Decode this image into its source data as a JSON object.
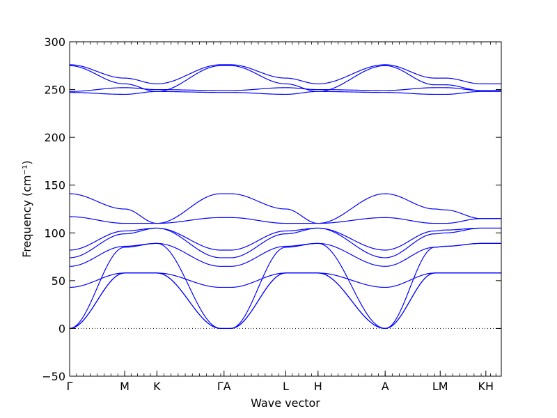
{
  "chart_data": {
    "type": "line",
    "xlabel": "Wave vector",
    "ylabel": "Frequency (cm⁻¹)",
    "ylim": [
      -50,
      300
    ],
    "yticks": [
      -50,
      0,
      50,
      100,
      150,
      200,
      250,
      300
    ],
    "x_range": [
      0,
      6.43
    ],
    "high_symmetry_points": [
      {
        "label": "Γ",
        "x": 0
      },
      {
        "label": "M",
        "x": 0.82
      },
      {
        "label": "K",
        "x": 1.3
      },
      {
        "label": "ΓA",
        "x": 2.3
      },
      {
        "label": "L",
        "x": 3.22
      },
      {
        "label": "H",
        "x": 3.7
      },
      {
        "label": "A",
        "x": 4.7
      },
      {
        "label": "LM",
        "x": 5.52
      },
      {
        "label": "KH",
        "x": 6.2
      }
    ],
    "segments": [
      {
        "path": "Γ-M",
        "x": [
          0,
          0.82
        ]
      },
      {
        "path": "M-K",
        "x": [
          0.82,
          1.3
        ]
      },
      {
        "path": "K-Γ",
        "x": [
          1.3,
          2.25
        ]
      },
      {
        "path": "A-L",
        "x": [
          2.4,
          3.22
        ]
      },
      {
        "path": "L-H",
        "x": [
          3.22,
          3.7
        ]
      },
      {
        "path": "H-A",
        "x": [
          3.7,
          4.7
        ]
      },
      {
        "path": "A-L",
        "x": [
          4.7,
          5.44
        ]
      },
      {
        "path": "M-K",
        "x": [
          5.6,
          6.13
        ]
      },
      {
        "path": "H",
        "x": [
          6.27,
          6.43
        ]
      }
    ],
    "series": [
      {
        "values": [
          [
            0,
            0
          ],
          [
            0.82,
            58
          ],
          [
            1.3,
            58
          ],
          [
            2.25,
            0
          ],
          [
            2.4,
            0
          ],
          [
            3.22,
            58
          ],
          [
            3.7,
            58
          ],
          [
            4.7,
            0
          ],
          [
            5.44,
            58
          ],
          [
            5.6,
            58
          ],
          [
            6.13,
            58
          ],
          [
            6.27,
            58
          ],
          [
            6.43,
            58
          ]
        ]
      },
      {
        "values": [
          [
            0,
            0
          ],
          [
            0.82,
            58
          ],
          [
            1.3,
            58
          ],
          [
            2.25,
            0
          ],
          [
            2.4,
            0
          ],
          [
            3.22,
            58
          ],
          [
            3.7,
            58
          ],
          [
            4.7,
            0
          ],
          [
            5.44,
            58
          ],
          [
            5.6,
            58
          ],
          [
            6.13,
            58
          ],
          [
            6.27,
            58
          ],
          [
            6.43,
            58
          ]
        ]
      },
      {
        "values": [
          [
            0,
            0
          ],
          [
            0.82,
            85
          ],
          [
            1.3,
            89
          ],
          [
            2.25,
            0
          ],
          [
            2.4,
            0
          ],
          [
            3.22,
            85
          ],
          [
            3.7,
            89
          ],
          [
            4.7,
            0
          ],
          [
            5.44,
            85
          ],
          [
            5.6,
            86
          ],
          [
            6.13,
            89
          ],
          [
            6.27,
            89
          ],
          [
            6.43,
            89
          ]
        ]
      },
      {
        "values": [
          [
            0,
            43
          ],
          [
            0.82,
            58
          ],
          [
            1.3,
            58
          ],
          [
            2.25,
            43
          ],
          [
            2.4,
            43
          ],
          [
            3.22,
            58
          ],
          [
            3.7,
            58
          ],
          [
            4.7,
            43
          ],
          [
            5.44,
            58
          ],
          [
            5.6,
            58
          ],
          [
            6.13,
            58
          ],
          [
            6.27,
            58
          ],
          [
            6.43,
            58
          ]
        ]
      },
      {
        "values": [
          [
            0,
            65
          ],
          [
            0.82,
            86
          ],
          [
            1.3,
            89
          ],
          [
            2.25,
            65
          ],
          [
            2.4,
            65
          ],
          [
            3.22,
            86
          ],
          [
            3.7,
            89
          ],
          [
            4.7,
            65
          ],
          [
            5.44,
            85
          ],
          [
            5.6,
            86
          ],
          [
            6.13,
            89
          ],
          [
            6.27,
            89
          ],
          [
            6.43,
            89
          ]
        ]
      },
      {
        "values": [
          [
            0,
            74
          ],
          [
            0.82,
            99
          ],
          [
            1.3,
            105
          ],
          [
            2.25,
            74
          ],
          [
            2.4,
            74
          ],
          [
            3.22,
            99
          ],
          [
            3.7,
            105
          ],
          [
            4.7,
            74
          ],
          [
            5.44,
            99
          ],
          [
            5.6,
            100
          ],
          [
            6.13,
            105
          ],
          [
            6.27,
            105
          ],
          [
            6.43,
            105
          ]
        ]
      },
      {
        "values": [
          [
            0,
            82
          ],
          [
            0.82,
            102
          ],
          [
            1.3,
            105
          ],
          [
            2.25,
            82
          ],
          [
            2.4,
            82
          ],
          [
            3.22,
            102
          ],
          [
            3.7,
            105
          ],
          [
            4.7,
            82
          ],
          [
            5.44,
            102
          ],
          [
            5.6,
            103
          ],
          [
            6.13,
            105
          ],
          [
            6.27,
            105
          ],
          [
            6.43,
            105
          ]
        ]
      },
      {
        "values": [
          [
            0,
            117
          ],
          [
            0.82,
            110
          ],
          [
            1.3,
            110
          ],
          [
            2.25,
            116
          ],
          [
            2.4,
            116
          ],
          [
            3.22,
            110
          ],
          [
            3.7,
            110
          ],
          [
            4.7,
            116
          ],
          [
            5.44,
            110
          ],
          [
            5.6,
            110
          ],
          [
            6.13,
            115
          ],
          [
            6.27,
            115
          ],
          [
            6.43,
            115
          ]
        ]
      },
      {
        "values": [
          [
            0,
            141
          ],
          [
            0.82,
            125
          ],
          [
            1.3,
            110
          ],
          [
            2.25,
            141
          ],
          [
            2.4,
            141
          ],
          [
            3.22,
            125
          ],
          [
            3.7,
            110
          ],
          [
            4.7,
            141
          ],
          [
            5.44,
            125
          ],
          [
            5.6,
            124
          ],
          [
            6.13,
            115
          ],
          [
            6.27,
            115
          ],
          [
            6.43,
            115
          ]
        ]
      },
      {
        "values": [
          [
            0,
            247
          ],
          [
            0.82,
            245
          ],
          [
            1.3,
            248
          ],
          [
            2.25,
            247
          ],
          [
            2.4,
            247
          ],
          [
            3.22,
            245
          ],
          [
            3.7,
            248
          ],
          [
            4.7,
            247
          ],
          [
            5.44,
            245
          ],
          [
            5.6,
            245
          ],
          [
            6.13,
            248
          ],
          [
            6.27,
            248
          ],
          [
            6.43,
            248
          ]
        ]
      },
      {
        "values": [
          [
            0,
            248
          ],
          [
            0.82,
            252
          ],
          [
            1.3,
            250
          ],
          [
            2.25,
            249
          ],
          [
            2.4,
            249
          ],
          [
            3.22,
            252
          ],
          [
            3.7,
            250
          ],
          [
            4.7,
            249
          ],
          [
            5.44,
            252
          ],
          [
            5.6,
            252
          ],
          [
            6.13,
            249
          ],
          [
            6.27,
            249
          ],
          [
            6.43,
            249
          ]
        ]
      },
      {
        "values": [
          [
            0,
            275
          ],
          [
            0.82,
            256
          ],
          [
            1.3,
            248
          ],
          [
            2.25,
            275
          ],
          [
            2.4,
            275
          ],
          [
            3.22,
            256
          ],
          [
            3.7,
            248
          ],
          [
            4.7,
            275
          ],
          [
            5.44,
            255
          ],
          [
            5.6,
            255
          ],
          [
            6.13,
            249
          ],
          [
            6.27,
            249
          ],
          [
            6.43,
            249
          ]
        ]
      },
      {
        "values": [
          [
            0,
            276
          ],
          [
            0.82,
            262
          ],
          [
            1.3,
            256
          ],
          [
            2.25,
            276
          ],
          [
            2.4,
            276
          ],
          [
            3.22,
            262
          ],
          [
            3.7,
            256
          ],
          [
            4.7,
            276
          ],
          [
            5.44,
            262
          ],
          [
            5.6,
            262
          ],
          [
            6.13,
            256
          ],
          [
            6.27,
            256
          ],
          [
            6.43,
            256
          ]
        ]
      }
    ],
    "zero_line": true,
    "grid": false,
    "colors": {
      "line": "#0000ff",
      "axis": "#000000",
      "zero_line": "#000000"
    }
  }
}
